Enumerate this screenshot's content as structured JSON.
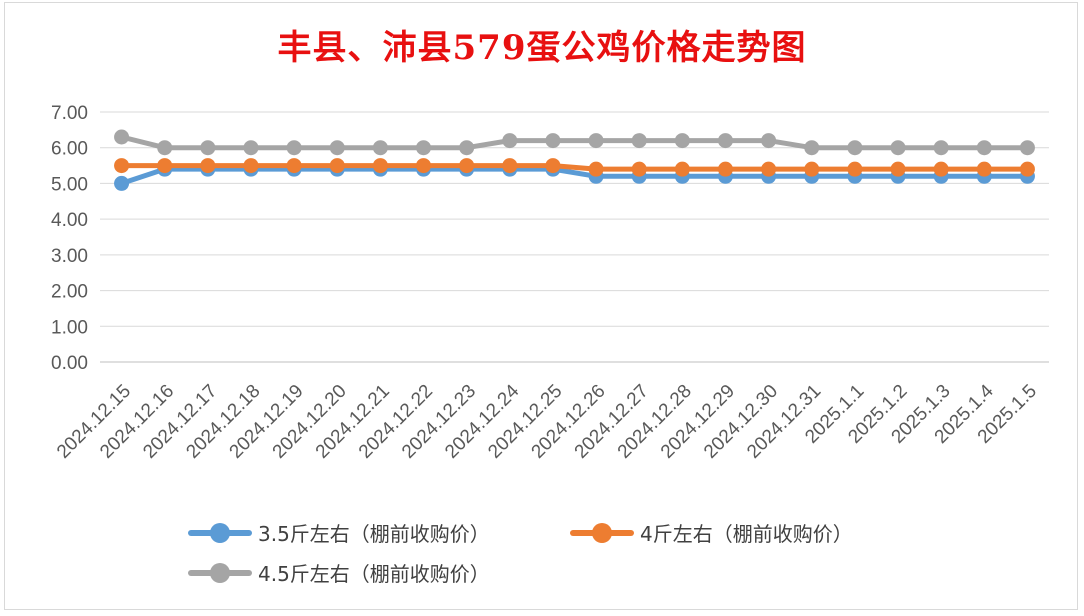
{
  "chart_data": {
    "type": "line",
    "title": "丰县、沛县579蛋公鸡价格走势图",
    "xlabel": "",
    "ylabel": "",
    "ylim": [
      0,
      7
    ],
    "yticks": [
      "0.00",
      "1.00",
      "2.00",
      "3.00",
      "4.00",
      "5.00",
      "6.00",
      "7.00"
    ],
    "grid": true,
    "legend_position": "bottom",
    "categories": [
      "2024.12.15",
      "2024.12.16",
      "2024.12.17",
      "2024.12.18",
      "2024.12.19",
      "2024.12.20",
      "2024.12.21",
      "2024.12.22",
      "2024.12.23",
      "2024.12.24",
      "2024.12.25",
      "2024.12.26",
      "2024.12.27",
      "2024.12.28",
      "2024.12.29",
      "2024.12.30",
      "2024.12.31",
      "2025.1.1",
      "2025.1.2",
      "2025.1.3",
      "2025.1.4",
      "2025.1.5"
    ],
    "series": [
      {
        "name": "3.5斤左右（棚前收购价）",
        "color": "#5b9bd5",
        "values": [
          5.0,
          5.4,
          5.4,
          5.4,
          5.4,
          5.4,
          5.4,
          5.4,
          5.4,
          5.4,
          5.4,
          5.2,
          5.2,
          5.2,
          5.2,
          5.2,
          5.2,
          5.2,
          5.2,
          5.2,
          5.2,
          5.2
        ]
      },
      {
        "name": "4斤左右（棚前收购价）",
        "color": "#ed7d31",
        "values": [
          5.5,
          5.5,
          5.5,
          5.5,
          5.5,
          5.5,
          5.5,
          5.5,
          5.5,
          5.5,
          5.5,
          5.4,
          5.4,
          5.4,
          5.4,
          5.4,
          5.4,
          5.4,
          5.4,
          5.4,
          5.4,
          5.4
        ]
      },
      {
        "name": "4.5斤左右（棚前收购价）",
        "color": "#a5a5a5",
        "values": [
          6.3,
          6.0,
          6.0,
          6.0,
          6.0,
          6.0,
          6.0,
          6.0,
          6.0,
          6.2,
          6.2,
          6.2,
          6.2,
          6.2,
          6.2,
          6.2,
          6.0,
          6.0,
          6.0,
          6.0,
          6.0,
          6.0
        ]
      }
    ]
  }
}
